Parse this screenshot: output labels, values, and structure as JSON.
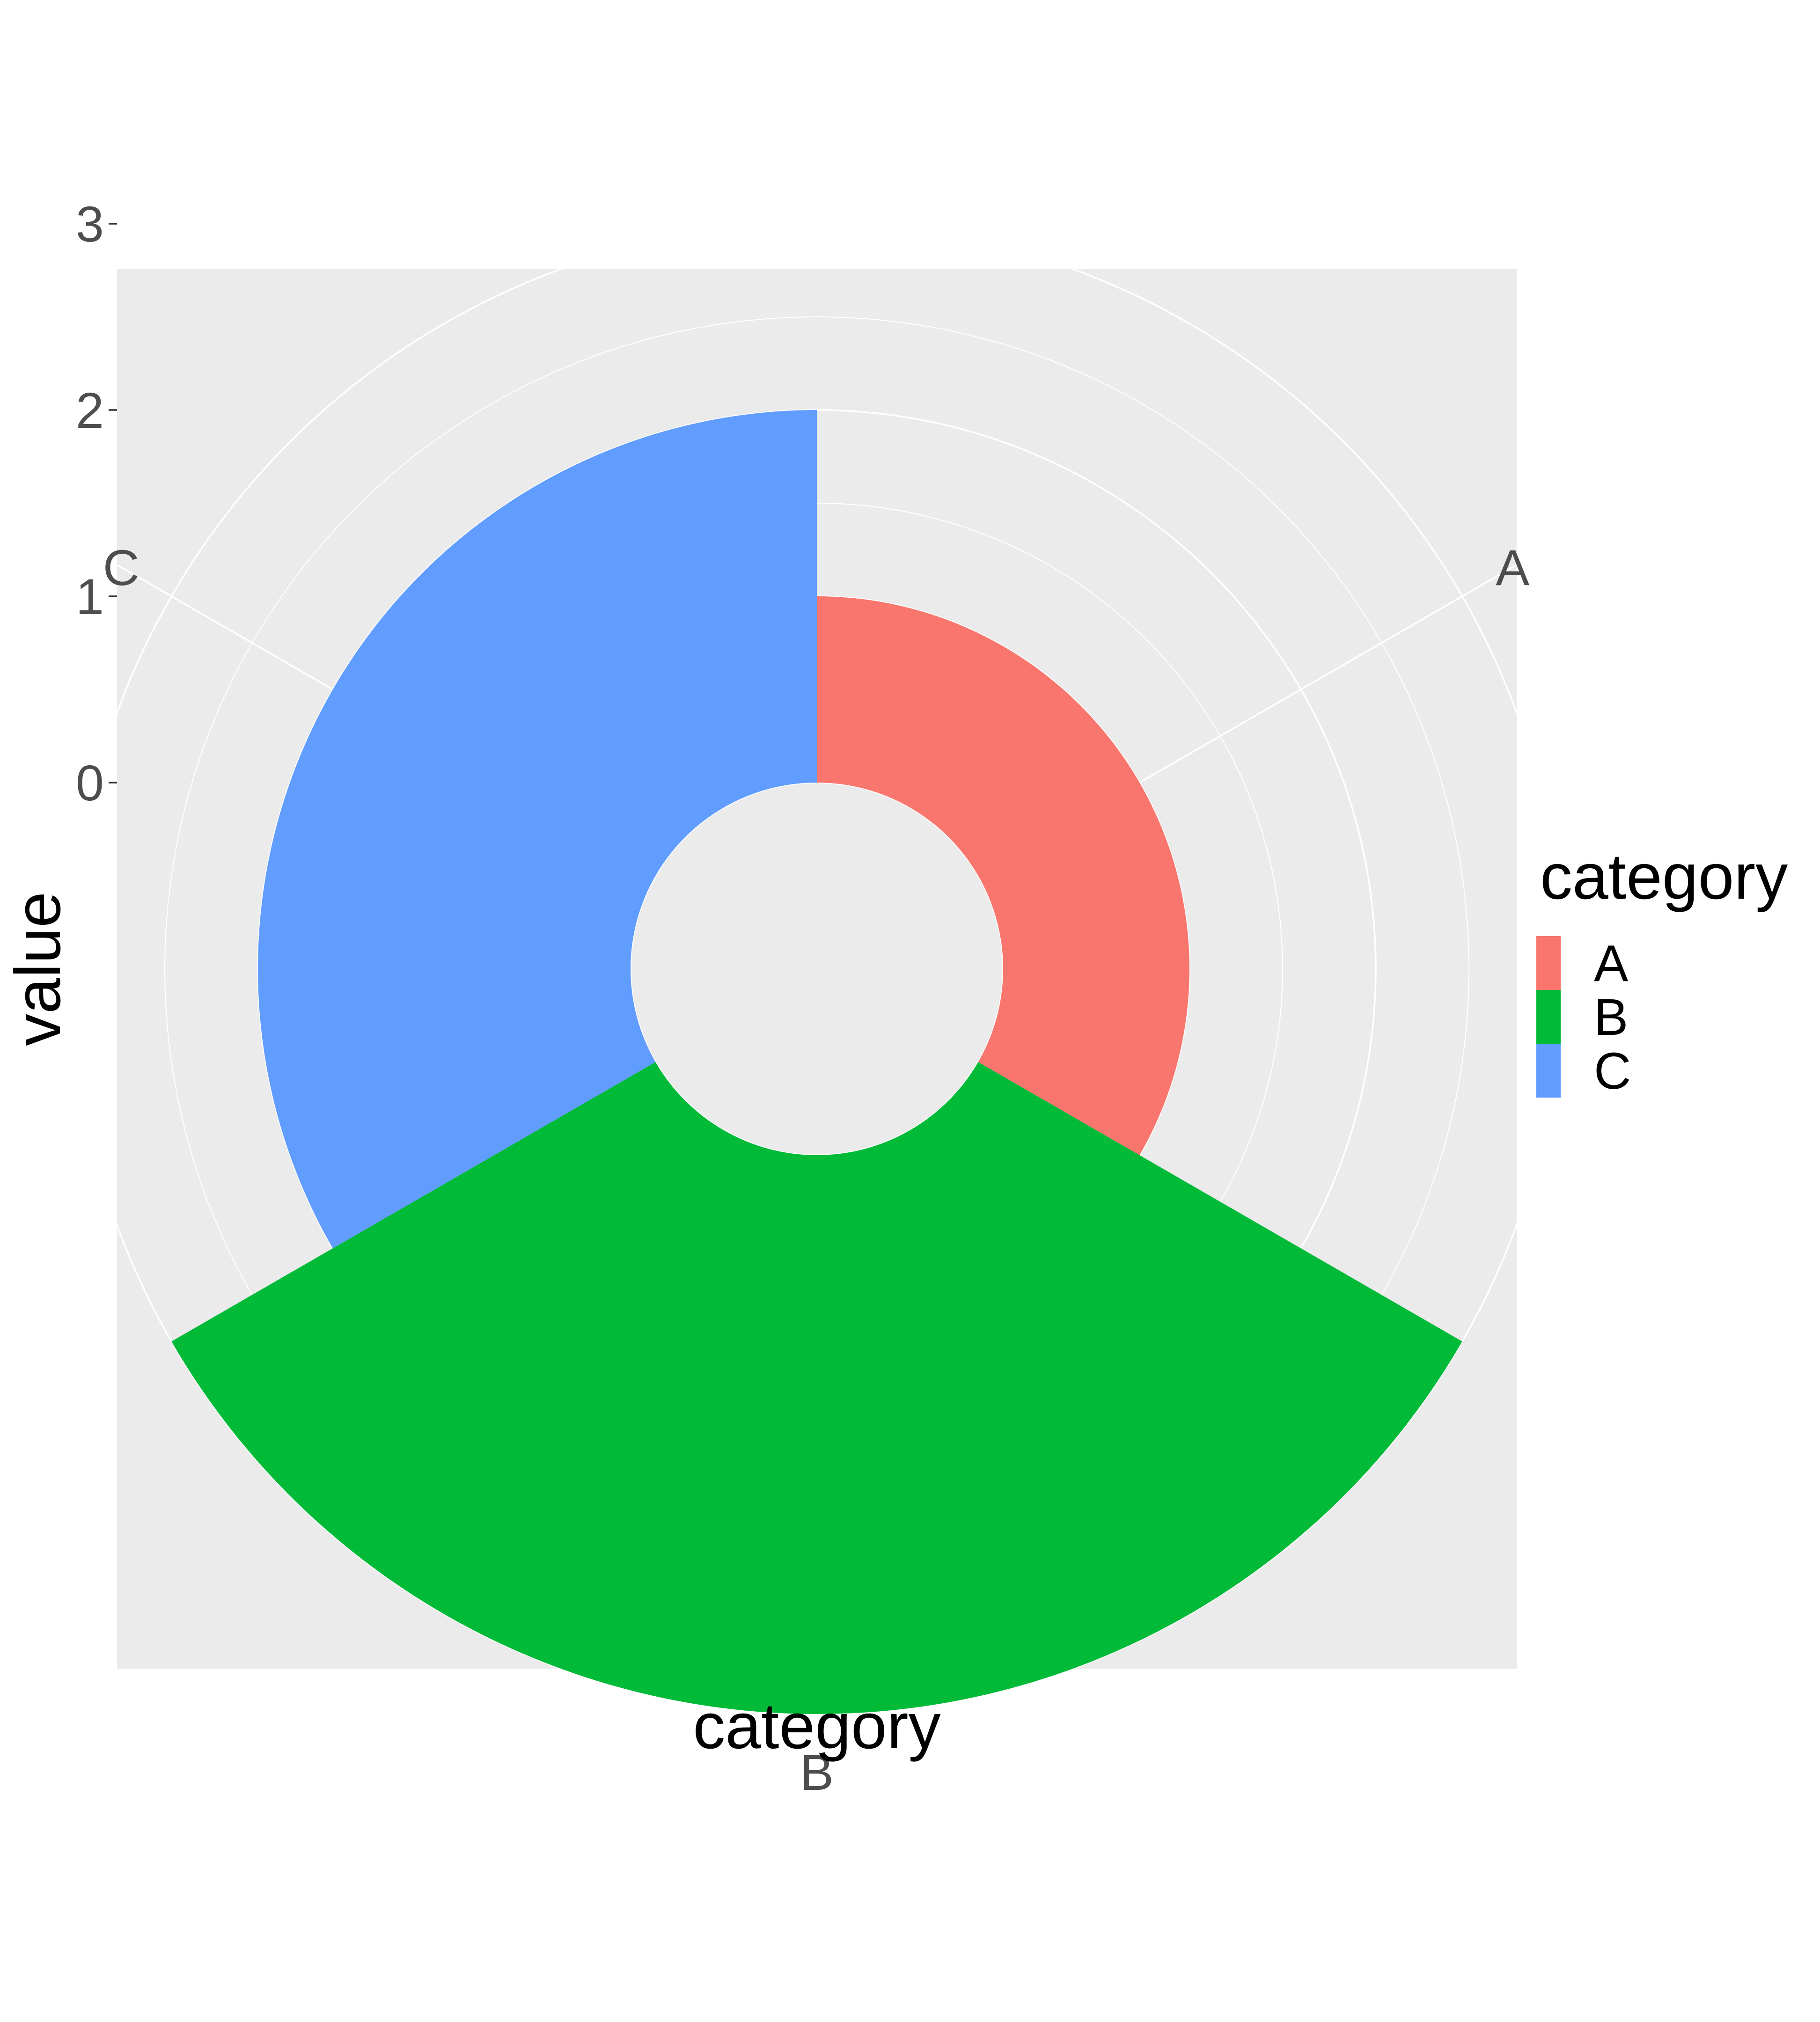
{
  "chart_data": {
    "type": "bar",
    "coord": "polar",
    "categories": [
      "A",
      "B",
      "C"
    ],
    "values": [
      1,
      3,
      2
    ],
    "colors": [
      "#F8766D",
      "#00BA38",
      "#619CFF"
    ],
    "xlabel": "category",
    "ylabel": "value",
    "yticks": [
      0,
      1,
      2,
      3
    ],
    "ylim": [
      -1,
      3.4
    ],
    "grid": true,
    "legend": {
      "title": "category",
      "position": "right",
      "entries": [
        "A",
        "B",
        "C"
      ]
    }
  }
}
